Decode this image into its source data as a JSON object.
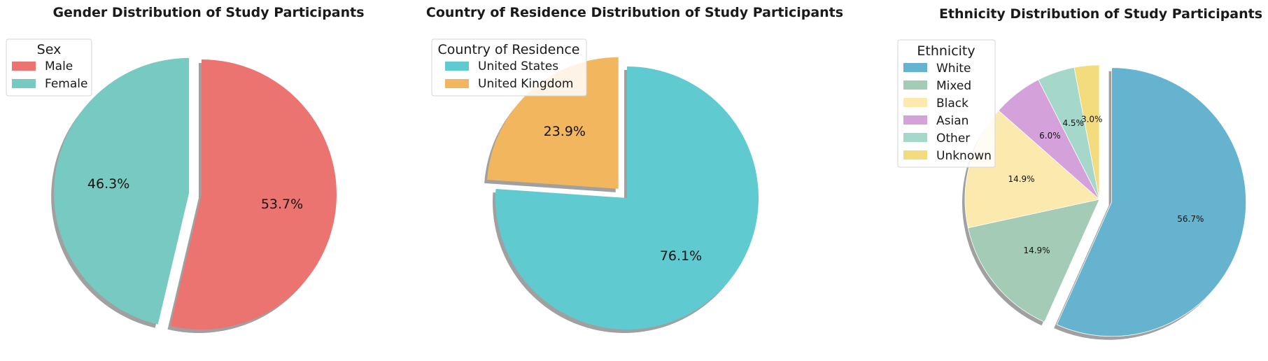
{
  "chart_data": [
    {
      "type": "pie",
      "title": "Gender Distribution of Study Participants",
      "legend_title": "Sex",
      "legend_position": "upper-left",
      "categories": [
        "Male",
        "Female"
      ],
      "values": [
        53.7,
        46.3
      ],
      "labels": [
        "53.7%",
        "46.3%"
      ],
      "colors": [
        "#ec7470",
        "#76cac1"
      ],
      "exploded": [
        false,
        true
      ],
      "shadow": true,
      "start_angle": 90
    },
    {
      "type": "pie",
      "title": "Country of Residence Distribution of Study Participants",
      "legend_title": "Country of Residence",
      "legend_position": "upper-left",
      "categories": [
        "United States",
        "United Kingdom"
      ],
      "values": [
        76.1,
        23.9
      ],
      "labels": [
        "76.1%",
        "23.9%"
      ],
      "colors": [
        "#5fcad0",
        "#f2b65e"
      ],
      "exploded": [
        false,
        true
      ],
      "shadow": true,
      "start_angle": 90
    },
    {
      "type": "pie",
      "title": "Ethnicity Distribution of Study Participants",
      "legend_title": "Ethnicity",
      "legend_position": "upper-left",
      "categories": [
        "White",
        "Mixed",
        "Black",
        "Asian",
        "Other",
        "Unknown"
      ],
      "values": [
        56.7,
        14.9,
        14.9,
        6.0,
        4.5,
        3.0
      ],
      "labels": [
        "56.7%",
        "14.9%",
        "14.9%",
        "6.0%",
        "4.5%",
        "3.0%"
      ],
      "colors": [
        "#65b3ce",
        "#a3cbb5",
        "#fce9ae",
        "#d4a1da",
        "#a6d7cb",
        "#f2dc7e"
      ],
      "exploded": [
        true,
        false,
        false,
        false,
        false,
        false
      ],
      "shadow": true,
      "start_angle": 90
    }
  ]
}
